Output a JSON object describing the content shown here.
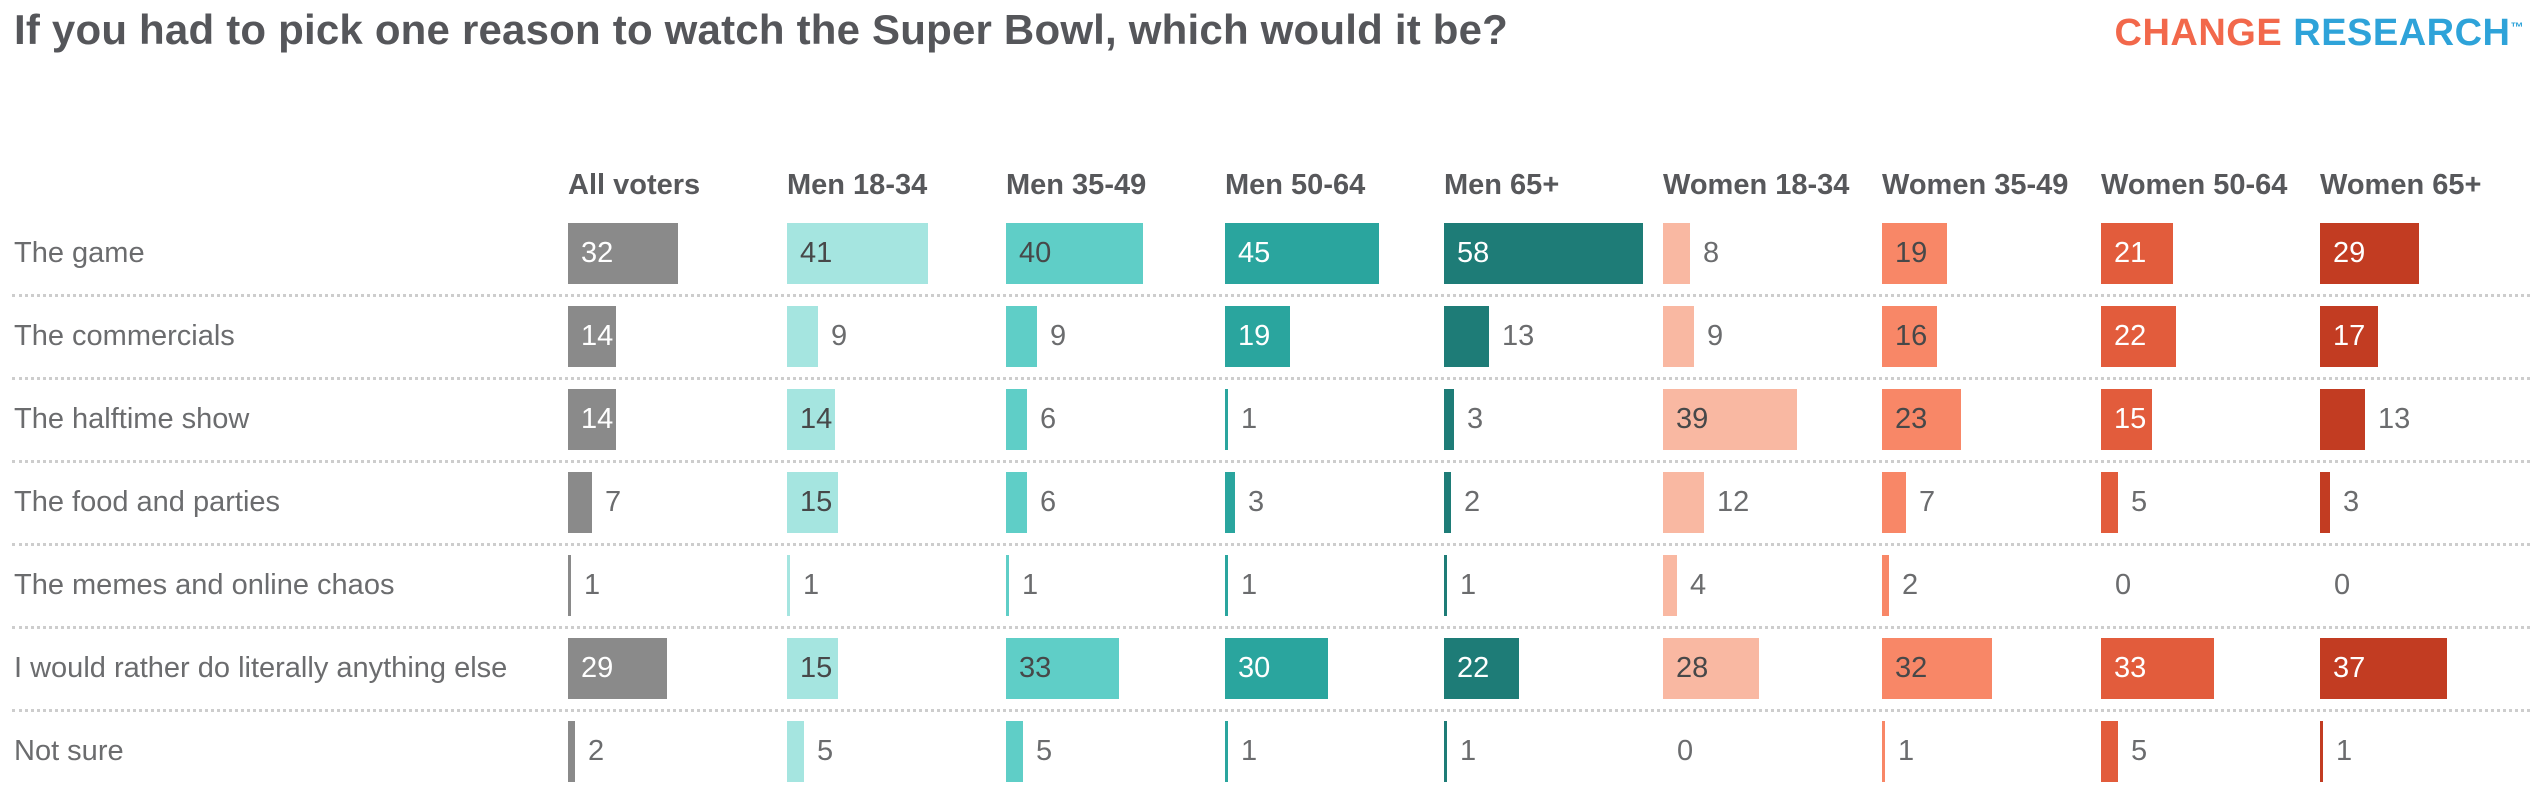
{
  "page": {
    "title": "If you had to pick one reason to watch the Super Bowl, which would it be?",
    "logo": {
      "part1": "CHANGE",
      "part2": "RESEARCH",
      "tm": "™",
      "part1_color": "#f2684b",
      "part2_color": "#2ea3d9"
    }
  },
  "chart_data": {
    "type": "bar",
    "orientation": "horizontal",
    "title": "If you had to pick one reason to watch the Super Bowl, which would it be?",
    "values_are_percent": true,
    "value_range": [
      0,
      58
    ],
    "grid": "dotted row separators",
    "legend_position": "column headers",
    "outside_label_color": "#6b6c6e",
    "label_inside_threshold": 14,
    "columns": [
      {
        "label": "All voters",
        "color": "#8a8a8a",
        "text_in_bar": "#ffffff"
      },
      {
        "label": "Men 18-34",
        "color": "#a5e5e0",
        "text_in_bar": "#474849"
      },
      {
        "label": "Men 35-49",
        "color": "#5fcec7",
        "text_in_bar": "#474849"
      },
      {
        "label": "Men 50-64",
        "color": "#2aa59e",
        "text_in_bar": "#ffffff"
      },
      {
        "label": "Men 65+",
        "color": "#1e7c77",
        "text_in_bar": "#ffffff"
      },
      {
        "label": "Women 18-34",
        "color": "#f9b8a2",
        "text_in_bar": "#474849"
      },
      {
        "label": "Women 35-49",
        "color": "#f88767",
        "text_in_bar": "#474849"
      },
      {
        "label": "Women 50-64",
        "color": "#e25c3c",
        "text_in_bar": "#ffffff"
      },
      {
        "label": "Women 65+",
        "color": "#c23c22",
        "text_in_bar": "#ffffff"
      }
    ],
    "rows": [
      {
        "label": "The game",
        "values": [
          32,
          41,
          40,
          45,
          58,
          8,
          19,
          21,
          29
        ]
      },
      {
        "label": "The commercials",
        "values": [
          14,
          9,
          9,
          19,
          13,
          9,
          16,
          22,
          17
        ]
      },
      {
        "label": "The halftime show",
        "values": [
          14,
          14,
          6,
          1,
          3,
          39,
          23,
          15,
          13
        ]
      },
      {
        "label": "The food and parties",
        "values": [
          7,
          15,
          6,
          3,
          2,
          12,
          7,
          5,
          3
        ]
      },
      {
        "label": "The memes and online chaos",
        "values": [
          1,
          1,
          1,
          1,
          1,
          4,
          2,
          0,
          0
        ]
      },
      {
        "label": "I would rather do literally anything else",
        "values": [
          29,
          15,
          33,
          30,
          22,
          28,
          32,
          33,
          37
        ]
      },
      {
        "label": "Not sure",
        "values": [
          2,
          5,
          5,
          1,
          1,
          0,
          1,
          5,
          1
        ]
      }
    ]
  }
}
